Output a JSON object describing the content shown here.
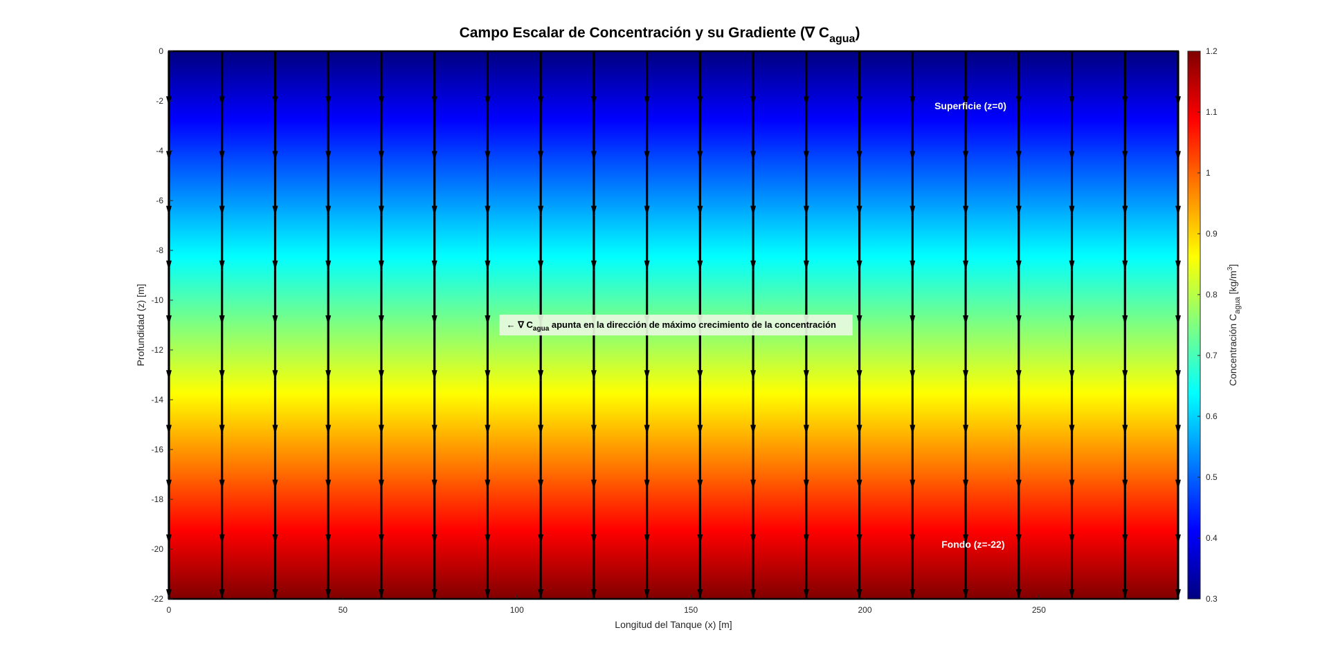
{
  "chart_data": {
    "type": "heatmap",
    "title": "Campo Escalar de Concentración y su Gradiente (∇ C",
    "title_sub": "agua",
    "title_tail": ")",
    "xlabel": "Longitud del Tanque (x) [m]",
    "ylabel": "Profundidad (z) [m]",
    "xlim": [
      0,
      290
    ],
    "ylim": [
      -22,
      0
    ],
    "xticks": [
      0,
      50,
      100,
      150,
      200,
      250
    ],
    "yticks": [
      0,
      -2,
      -4,
      -6,
      -8,
      -10,
      -12,
      -14,
      -16,
      -18,
      -20,
      -22
    ],
    "colormap": "jet",
    "field": {
      "description_equation": "C = 0.3 at z=0, 1.2 at z=-22, linear in depth",
      "c_at_z0": 0.3,
      "c_at_zmin": 1.2
    },
    "colorbar": {
      "label_main": "Concentración C",
      "label_sub": "agua",
      "label_unit_pre": " [kg/m",
      "label_unit_sup": "3",
      "label_unit_post": "]",
      "lim": [
        0.3,
        1.2
      ],
      "ticks": [
        1.2,
        1.1,
        1.0,
        0.9,
        0.8,
        0.7,
        0.6,
        0.5,
        0.4,
        0.3
      ],
      "tick_labels": [
        "1.2",
        "1.1",
        "1",
        "0.9",
        "0.8",
        "0.7",
        "0.6",
        "0.5",
        "0.4",
        "0.3"
      ]
    },
    "quiver": {
      "x_positions": [
        0,
        15.26,
        30.53,
        45.79,
        61.05,
        76.32,
        91.58,
        106.84,
        122.11,
        137.37,
        152.63,
        167.89,
        183.16,
        198.42,
        213.68,
        228.95,
        244.21,
        259.47,
        274.74,
        290
      ],
      "z_positions": [
        0,
        -2.2,
        -4.4,
        -6.6,
        -8.8,
        -11,
        -13.2,
        -15.4,
        -17.6,
        -19.8,
        -22
      ],
      "direction": "down",
      "color": "#000000"
    },
    "annotations": [
      {
        "text": "Superficie (z=0)",
        "x": 220,
        "z": -2.2
      },
      {
        "text": "Fondo (z=-22)",
        "x": 222,
        "z": -19.8
      }
    ],
    "gradient_note": {
      "pre": "← ∇ C",
      "sub": "agua",
      "post": " apunta en la dirección de máximo crecimiento de la concentración",
      "x": 95,
      "z": -11,
      "box_color": "#e8f8e0"
    }
  }
}
